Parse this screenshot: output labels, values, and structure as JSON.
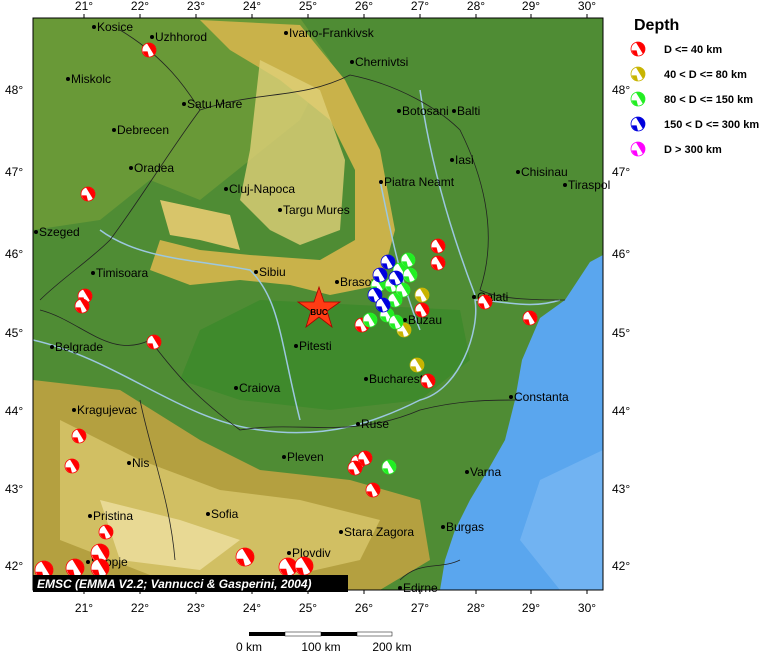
{
  "legend": {
    "title": "Depth",
    "items": [
      {
        "label": "D <= 40 km",
        "color": "#ff0000"
      },
      {
        "label": "40 < D <= 80 km",
        "color": "#c8b400"
      },
      {
        "label": "80 < D <= 150 km",
        "color": "#22ee22"
      },
      {
        "label": "150 < D <= 300 km",
        "color": "#0000dd"
      },
      {
        "label": "D > 300 km",
        "color": "#ff00ff"
      }
    ]
  },
  "credit": "EMSC (EMMA V2.2; Vannucci & Gasperini, 2004)",
  "epicenter_label": "BUC",
  "lon_ticks": [
    "21°",
    "22°",
    "23°",
    "24°",
    "25°",
    "26°",
    "27°",
    "28°",
    "29°",
    "30°"
  ],
  "lat_ticks": [
    "48°",
    "47°",
    "46°",
    "45°",
    "44°",
    "43°",
    "42°"
  ],
  "scale": {
    "labels": [
      "0 km",
      "100 km",
      "200 km"
    ]
  },
  "cities": [
    "Kosice",
    "Uzhhorod",
    "Ivano-Frankivsk",
    "Chernivtsi",
    "Miskolc",
    "Satu Mare",
    "Botosani",
    "Balti",
    "Debrecen",
    "Iasi",
    "Chisinau",
    "Tiraspol",
    "Oradea",
    "Cluj-Napoca",
    "Piatra Neamt",
    "Targu Mures",
    "Szeged",
    "Timisoara",
    "Sibiu",
    "Brasov",
    "Galati",
    "Buzau",
    "Belgrade",
    "Pitesti",
    "Bucharest",
    "Craiova",
    "Constanta",
    "Kragujevac",
    "Ruse",
    "Nis",
    "Pleven",
    "Varna",
    "Pristina",
    "Sofia",
    "Stara Zagora",
    "Burgas",
    "Plovdiv",
    "Skopje",
    "Edirne"
  ]
}
